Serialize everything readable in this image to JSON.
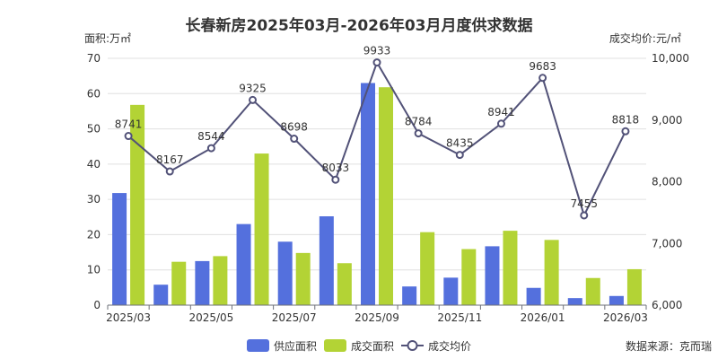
{
  "chart_data": {
    "type": "bar",
    "title": "长春新房2025年03月-2026年03月月度供求数据",
    "y_left_label": "面积:万㎡",
    "y_right_label": "成交均价:元/㎡",
    "y_left_range": [
      0,
      70
    ],
    "y_left_ticks": [
      "0",
      "10",
      "20",
      "30",
      "40",
      "50",
      "60",
      "70"
    ],
    "y_right_range": [
      6000,
      10000
    ],
    "y_right_ticks": [
      "6,000",
      "7,000",
      "8,000",
      "9,000",
      "10,000"
    ],
    "categories": [
      "2025/03",
      "2025/04",
      "2025/05",
      "2025/06",
      "2025/07",
      "2025/08",
      "2025/09",
      "2025/10",
      "2025/11",
      "2025/12",
      "2026/01",
      "2026/02",
      "2026/03"
    ],
    "x_tick_labels": [
      "2025/03",
      "",
      "2025/05",
      "",
      "2025/07",
      "",
      "2025/09",
      "",
      "2025/11",
      "",
      "2026/01",
      "",
      "2026/03"
    ],
    "grid": true,
    "legend_position": "bottom",
    "series": [
      {
        "name": "供应面积",
        "type": "bar",
        "axis": "left",
        "color": "#5470dd",
        "values": [
          31.8,
          5.8,
          12.5,
          23.0,
          18.0,
          25.2,
          63.0,
          5.3,
          7.8,
          16.7,
          4.9,
          2.0,
          2.6
        ]
      },
      {
        "name": "成交面积",
        "type": "bar",
        "axis": "left",
        "color": "#b3d335",
        "values": [
          56.8,
          12.3,
          13.9,
          43.0,
          14.8,
          11.9,
          61.8,
          20.7,
          15.9,
          21.1,
          18.5,
          7.7,
          10.2
        ]
      },
      {
        "name": "成交均价",
        "type": "line",
        "axis": "right",
        "color": "#525278",
        "values": [
          8741,
          8167,
          8544,
          9325,
          8698,
          8033,
          9933,
          8784,
          8435,
          8941,
          9683,
          7455,
          8818
        ],
        "labels": [
          "8741",
          "8167",
          "8544",
          "9325",
          "8698",
          "8033",
          "9933",
          "8784",
          "8435",
          "8941",
          "9683",
          "7455",
          "8818"
        ]
      }
    ],
    "source_note": "数据来源：克而瑞"
  }
}
